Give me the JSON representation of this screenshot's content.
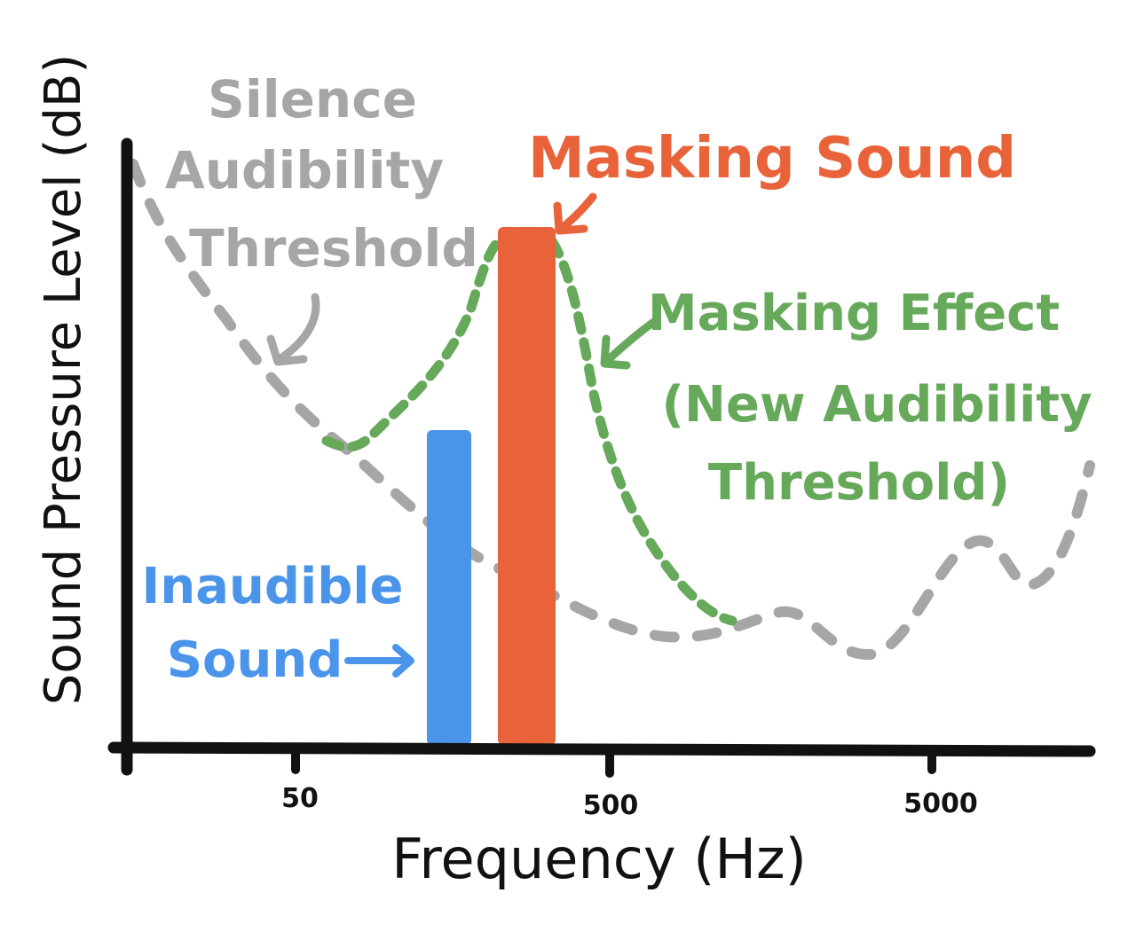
{
  "axes": {
    "ylabel": "Sound Pressure Level (dB)",
    "xlabel": "Frequency (Hz)",
    "xticks": [
      "50",
      "500",
      "5000"
    ],
    "axis_color": "#111111"
  },
  "annotations": {
    "silence_threshold": [
      "Silence",
      "Audibility",
      "Threshold"
    ],
    "masking_sound": "Masking Sound",
    "masking_effect": [
      "Masking Effect",
      "(New Audibility",
      "Threshold)"
    ],
    "inaudible_sound": [
      "Inaudible",
      "Sound"
    ]
  },
  "colors": {
    "silence_threshold": "#a6a6a6",
    "masking_effect": "#66a95a",
    "masking_sound": "#e8633a",
    "inaudible_sound": "#4a94ea"
  }
}
